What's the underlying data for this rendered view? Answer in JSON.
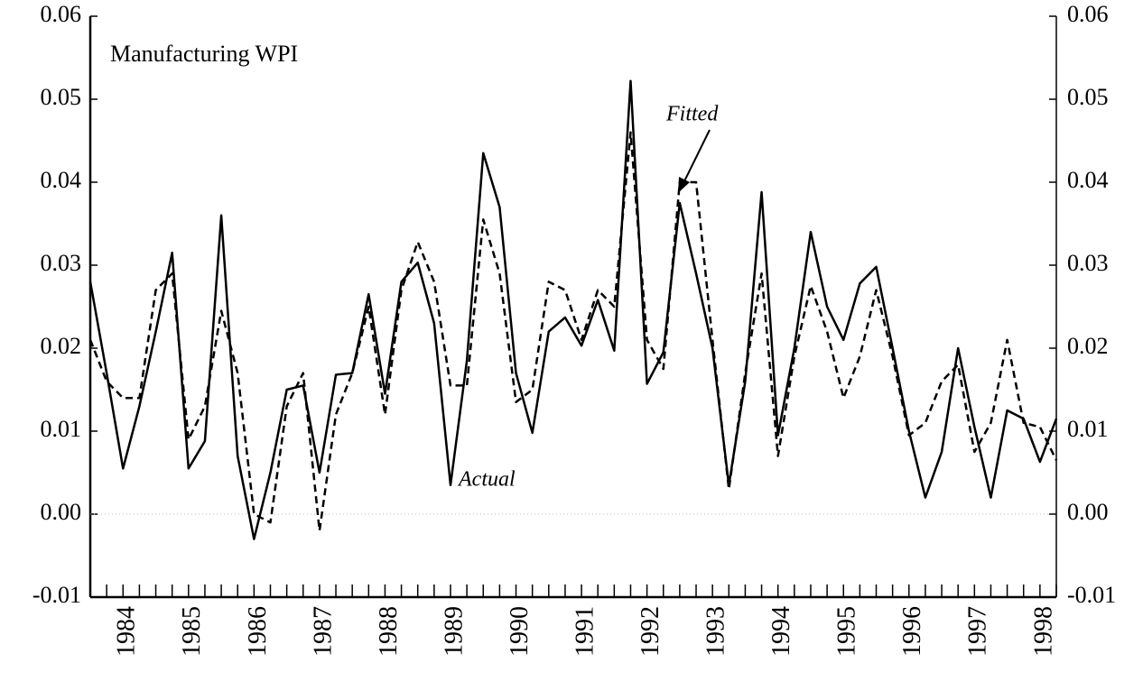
{
  "chart_data": {
    "type": "line",
    "title": "Manufacturing WPI",
    "categories": [
      null,
      null,
      "1984",
      null,
      null,
      null,
      "1985",
      null,
      null,
      null,
      "1986",
      null,
      null,
      null,
      "1987",
      null,
      null,
      null,
      "1988",
      null,
      null,
      null,
      "1989",
      null,
      null,
      null,
      "1990",
      null,
      null,
      null,
      "1991",
      null,
      null,
      null,
      "1992",
      null,
      null,
      null,
      "1993",
      null,
      null,
      null,
      "1994",
      null,
      null,
      null,
      "1995",
      null,
      null,
      null,
      "1996",
      null,
      null,
      null,
      "1997",
      null,
      null,
      null,
      "1998",
      null
    ],
    "series": [
      {
        "name": "Actual",
        "color": "#000000",
        "style": "solid",
        "values": [
          0.028,
          0.017,
          0.0055,
          0.013,
          0.022,
          0.0315,
          0.0055,
          0.0088,
          0.036,
          0.007,
          -0.003,
          0.005,
          0.015,
          0.0155,
          0.005,
          0.0168,
          0.017,
          0.0265,
          0.0145,
          0.028,
          0.0303,
          0.023,
          0.0035,
          0.0185,
          0.0435,
          0.037,
          0.017,
          0.0098,
          0.022,
          0.0237,
          0.0203,
          0.0258,
          0.0197,
          0.0522,
          0.0157,
          0.0195,
          0.0375,
          0.029,
          0.02,
          0.0035,
          0.016,
          0.0388,
          0.0095,
          0.02,
          0.034,
          0.025,
          0.021,
          0.0278,
          0.0298,
          0.02,
          0.01,
          0.002,
          0.0075,
          0.02,
          0.0105,
          0.002,
          0.0125,
          0.0115,
          0.0063,
          0.0115
        ]
      },
      {
        "name": "Fitted",
        "color": "#000000",
        "style": "dashed",
        "values": [
          0.021,
          0.016,
          0.014,
          0.014,
          0.027,
          0.029,
          0.009,
          0.013,
          0.0245,
          0.017,
          0,
          -0.001,
          0.013,
          0.017,
          -0.002,
          0.012,
          0.017,
          0.025,
          0.012,
          0.027,
          0.0328,
          0.028,
          0.0155,
          0.0155,
          0.0355,
          0.029,
          0.0135,
          0.015,
          0.028,
          0.027,
          0.021,
          0.027,
          0.025,
          0.046,
          0.021,
          0.0175,
          0.04,
          0.04,
          0.021,
          0.003,
          0.017,
          0.029,
          0.007,
          0.019,
          0.0275,
          0.022,
          0.014,
          0.019,
          0.027,
          0.019,
          0.0095,
          0.011,
          0.016,
          0.018,
          0.0075,
          0.011,
          0.021,
          0.011,
          0.0105,
          0.0065
        ]
      }
    ],
    "ylim": [
      -0.01,
      0.06
    ],
    "yticks": [
      -0.01,
      {
        "value": 0,
        "label": "0.00"
      },
      0.01,
      0.02,
      0.03,
      0.04,
      0.05,
      0.06
    ],
    "y2lim": [
      -0.01,
      0.06
    ],
    "y2ticks": [
      -0.01,
      {
        "value": 0,
        "label": "0.00"
      },
      0.01,
      0.02,
      0.03,
      0.04,
      0.05,
      0.06
    ]
  }
}
